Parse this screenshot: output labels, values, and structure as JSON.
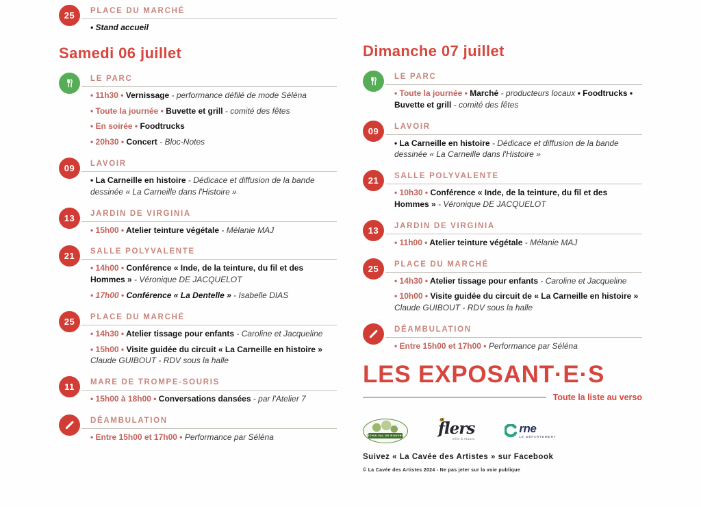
{
  "colors": {
    "badge_red": "#d13c35",
    "badge_green": "#57ad57",
    "title_red": "#d5463e",
    "label_rose": "#c8857c",
    "time_red": "#c2635c"
  },
  "top": {
    "sections": [
      {
        "badge": {
          "type": "number",
          "value": "25"
        },
        "location": "PLACE DU MARCHÉ",
        "items": [
          [
            {
              "s": "bi",
              "x": "• Stand accueil"
            }
          ]
        ]
      }
    ]
  },
  "days": [
    {
      "title": "Samedi 06 juillet",
      "sections": [
        {
          "badge": {
            "type": "utensils"
          },
          "location": "LE PARC",
          "items": [
            [
              {
                "s": "time",
                "x": "• 11h30 • "
              },
              {
                "s": "b",
                "x": "Vernissage"
              },
              {
                "s": "i",
                "x": " - performance défilé de mode Séléna"
              }
            ],
            [
              {
                "s": "time",
                "x": "• Toute la journée • "
              },
              {
                "s": "b",
                "x": "Buvette et grill"
              },
              {
                "s": "i",
                "x": " - comité des fêtes"
              }
            ],
            [
              {
                "s": "time",
                "x": "• En soirée • "
              },
              {
                "s": "b",
                "x": "Foodtrucks"
              }
            ],
            [
              {
                "s": "time",
                "x": "• 20h30 • "
              },
              {
                "s": "b",
                "x": "Concert"
              },
              {
                "s": "i",
                "x": " - Bloc-Notes"
              }
            ]
          ]
        },
        {
          "badge": {
            "type": "number",
            "value": "09"
          },
          "location": "LAVOIR",
          "items": [
            [
              {
                "s": "b",
                "x": "• La Carneille en histoire"
              },
              {
                "s": "i",
                "x": " - Dédicace et diffusion de la bande dessinée « La Carneille dans l'Histoire »"
              }
            ]
          ]
        },
        {
          "badge": {
            "type": "number",
            "value": "13"
          },
          "location": "JARDIN DE VIRGINIA",
          "items": [
            [
              {
                "s": "time",
                "x": "• 15h00 • "
              },
              {
                "s": "b",
                "x": "Atelier teinture végétale"
              },
              {
                "s": "i",
                "x": " - Mélanie MAJ"
              }
            ]
          ]
        },
        {
          "badge": {
            "type": "number",
            "value": "21"
          },
          "location": "SALLE POLYVALENTE",
          "items": [
            [
              {
                "s": "time",
                "x": "• 14h00 • "
              },
              {
                "s": "b",
                "x": "Conférence « Inde, de la teinture, du fil et des Hommes »"
              },
              {
                "s": "i",
                "x": " - Véronique DE JACQUELOT"
              }
            ],
            [
              {
                "s": "ti",
                "x": "• 17h00 • "
              },
              {
                "s": "bi",
                "x": "Conférence « La Dentelle »"
              },
              {
                "s": "i",
                "x": " - Isabelle DIAS"
              }
            ]
          ]
        },
        {
          "badge": {
            "type": "number",
            "value": "25"
          },
          "location": "PLACE DU MARCHÉ",
          "items": [
            [
              {
                "s": "time",
                "x": "• 14h30 • "
              },
              {
                "s": "b",
                "x": "Atelier tissage pour enfants"
              },
              {
                "s": "i",
                "x": " - Caroline et Jacqueline"
              }
            ],
            [
              {
                "s": "time",
                "x": "• 15h00 • "
              },
              {
                "s": "b",
                "x": "Visite guidée du circuit « La Carneille en histoire »"
              },
              {
                "s": "i",
                "x": " Claude GUIBOUT - RDV sous la halle"
              }
            ]
          ]
        },
        {
          "badge": {
            "type": "number",
            "value": "11"
          },
          "location": "MARE DE TROMPE-SOURIS",
          "items": [
            [
              {
                "s": "time",
                "x": "• 15h00 à 18h00 • "
              },
              {
                "s": "b",
                "x": "Conversations dansées"
              },
              {
                "s": "i",
                "x": " - par l'Atelier 7"
              }
            ]
          ]
        },
        {
          "badge": {
            "type": "slash"
          },
          "location": "DÉAMBULATION",
          "items": [
            [
              {
                "s": "time",
                "x": "• Entre 15h00 et 17h00 • "
              },
              {
                "s": "i",
                "x": "Performance par Séléna"
              }
            ]
          ]
        }
      ]
    },
    {
      "title": "Dimanche 07 juillet",
      "sections": [
        {
          "badge": {
            "type": "utensils"
          },
          "location": "LE PARC",
          "items": [
            [
              {
                "s": "time",
                "x": "• Toute la journée • "
              },
              {
                "s": "b",
                "x": "Marché"
              },
              {
                "s": "i",
                "x": " - producteurs locaux "
              },
              {
                "s": "b",
                "x": "• Foodtrucks • Buvette et grill"
              },
              {
                "s": "i",
                "x": " - comité des fêtes"
              }
            ]
          ]
        },
        {
          "badge": {
            "type": "number",
            "value": "09"
          },
          "location": "LAVOIR",
          "items": [
            [
              {
                "s": "b",
                "x": "• La Carneille en histoire"
              },
              {
                "s": "i",
                "x": " - Dédicace et diffusion de la bande dessinée « La Carneille dans l'Histoire »"
              }
            ]
          ]
        },
        {
          "badge": {
            "type": "number",
            "value": "21"
          },
          "location": "SALLE POLYVALENTE",
          "items": [
            [
              {
                "s": "time",
                "x": "• 10h30 • "
              },
              {
                "s": "b",
                "x": "Conférence « Inde, de la teinture, du fil et des Hommes »"
              },
              {
                "s": "i",
                "x": " - Véronique DE JACQUELOT"
              }
            ]
          ]
        },
        {
          "badge": {
            "type": "number",
            "value": "13"
          },
          "location": "JARDIN DE VIRGINIA",
          "items": [
            [
              {
                "s": "time",
                "x": "• 11h00 • "
              },
              {
                "s": "b",
                "x": "Atelier teinture végétale"
              },
              {
                "s": "i",
                "x": " - Mélanie MAJ"
              }
            ]
          ]
        },
        {
          "badge": {
            "type": "number",
            "value": "25"
          },
          "location": "PLACE DU MARCHÉ",
          "items": [
            [
              {
                "s": "time",
                "x": "• 14h30 • "
              },
              {
                "s": "b",
                "x": "Atelier tissage pour enfants"
              },
              {
                "s": "i",
                "x": " - Caroline et Jacqueline"
              }
            ],
            [
              {
                "s": "time",
                "x": "• 10h00 • "
              },
              {
                "s": "b",
                "x": "Visite guidée du circuit de « La Carneille en histoire »"
              },
              {
                "s": "i",
                "x": " Claude GUIBOUT - RDV sous la halle"
              }
            ]
          ]
        },
        {
          "badge": {
            "type": "slash"
          },
          "location": "DÉAMBULATION",
          "items": [
            [
              {
                "s": "time",
                "x": "• Entre 15h00 et 17h00 • "
              },
              {
                "s": "i",
                "x": "Performance par Séléna"
              }
            ]
          ]
        }
      ]
    }
  ],
  "exposants": {
    "title": "LES EXPOSANT·E·S",
    "note": "Toute la liste au verso"
  },
  "logos": [
    {
      "id": "athis",
      "label": "ATHIS VAL DE ROUVRE"
    },
    {
      "id": "flers",
      "label": "flers",
      "tagline": "Ville à Atouts"
    },
    {
      "id": "orne",
      "label": "rne",
      "tagline": "LE DÉPARTEMENT"
    }
  ],
  "footer": {
    "facebook": "Suivez « La Cavée des Artistes » sur Facebook",
    "copyright": "© La Cavée des Artistes 2024 - Ne pas jeter sur la voie publique"
  }
}
